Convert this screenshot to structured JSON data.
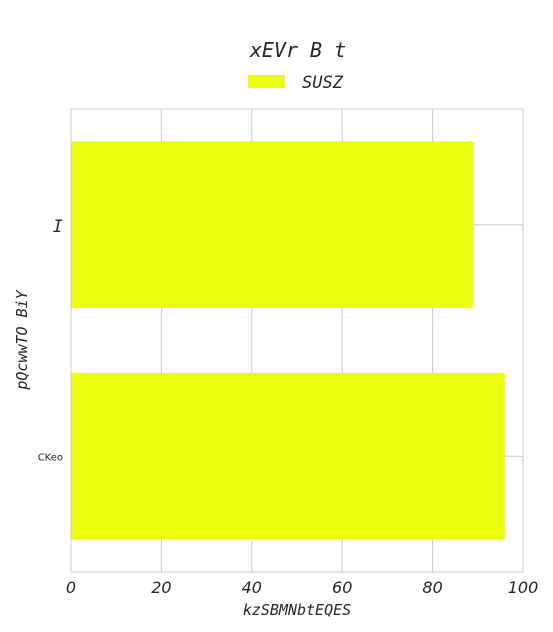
{
  "chart_data": {
    "type": "bar",
    "orientation": "horizontal",
    "title": "xEVr B t",
    "xlabel": "kzSBMNbtEQES",
    "ylabel": "pQcwwTO BiY",
    "categories": [
      "I",
      "CKeo"
    ],
    "series": [
      {
        "name": "SUSZ",
        "values": [
          89,
          96
        ],
        "color": "#eaff0b"
      }
    ],
    "xlim": [
      0,
      100
    ],
    "xticks": [
      "0",
      "20",
      "40",
      "60",
      "80",
      "100"
    ],
    "grid": true,
    "legend": "top-center"
  }
}
